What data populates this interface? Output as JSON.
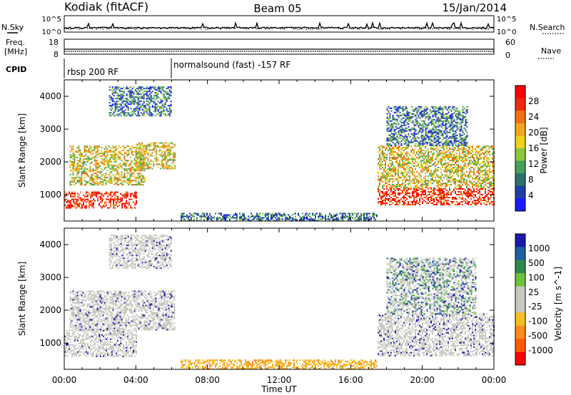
{
  "header": {
    "station": "Kodiak (fitACF)",
    "beam": "Beam 05",
    "date": "15/Jan/2014"
  },
  "aux_panels": {
    "nsky_label": "N.Sky",
    "nsearch_label": "N.Search",
    "nsky_ticks": [
      "10^5",
      "10^0"
    ],
    "nsearch_ticks": [
      "10^5",
      "10^0"
    ],
    "freq_label_line1": "Freq.",
    "freq_label_line2": "[MHz]",
    "freq_ticks": [
      "18",
      "8"
    ],
    "nave_label": "Nave",
    "nave_ticks": [
      "60",
      "0"
    ],
    "cpid_label": "CPID",
    "cpid_segments": [
      {
        "label": "rbsp 200 RF",
        "start_hour": 0,
        "end_hour": 6
      },
      {
        "label": "normalsound (fast) -157 RF",
        "start_hour": 6,
        "end_hour": 24
      }
    ]
  },
  "colors": {
    "power_scale": [
      "#1a1aff",
      "#1f3fa8",
      "#2e6f6f",
      "#48a05a",
      "#8cc63c",
      "#f0d21a",
      "#f5a51e",
      "#f27012",
      "#ee2a0e",
      "#ff0000"
    ],
    "velocity_scale": [
      "#ff0000",
      "#ff5a00",
      "#ff8c1a",
      "#f5c01e",
      "#c8c8c0",
      "#c8c8c0",
      "#6cc43c",
      "#2e8a4a",
      "#1f5fa0",
      "#1a1aa8"
    ],
    "ground_scatter": "#c8c8c0"
  },
  "chart_data": [
    {
      "type": "heatmap",
      "name": "power",
      "xlabel": "",
      "ylabel": "Slant Range [km]",
      "xlim": [
        0,
        24
      ],
      "ylim": [
        200,
        4500
      ],
      "yticks": [
        "1000",
        "2000",
        "3000",
        "4000"
      ],
      "colorbar_label": "Power [dB]",
      "colorbar_ticks": [
        "28",
        "24",
        "20",
        "16",
        "12",
        "8",
        "4"
      ],
      "echo_regions": [
        {
          "start_hour": 0.0,
          "end_hour": 4.0,
          "min_km": 600,
          "max_km": 1100,
          "level": "high"
        },
        {
          "start_hour": 0.3,
          "end_hour": 4.5,
          "min_km": 1300,
          "max_km": 2500,
          "level": "medium"
        },
        {
          "start_hour": 4.0,
          "end_hour": 6.2,
          "min_km": 1800,
          "max_km": 2600,
          "level": "medium"
        },
        {
          "start_hour": 2.5,
          "end_hour": 6.0,
          "min_km": 3400,
          "max_km": 4300,
          "level": "low"
        },
        {
          "start_hour": 17.5,
          "end_hour": 24.0,
          "min_km": 700,
          "max_km": 1200,
          "level": "high"
        },
        {
          "start_hour": 17.5,
          "end_hour": 24.0,
          "min_km": 1200,
          "max_km": 2500,
          "level": "medium"
        },
        {
          "start_hour": 18.0,
          "end_hour": 22.5,
          "min_km": 2500,
          "max_km": 3700,
          "level": "low"
        },
        {
          "start_hour": 6.5,
          "end_hour": 17.5,
          "min_km": 200,
          "max_km": 450,
          "level": "low"
        }
      ]
    },
    {
      "type": "heatmap",
      "name": "velocity",
      "xlabel": "Time UT",
      "ylabel": "Slant Range [km]",
      "xlim": [
        0,
        24
      ],
      "ylim": [
        200,
        4500
      ],
      "xticks": [
        "00:00",
        "04:00",
        "08:00",
        "12:00",
        "16:00",
        "20:00",
        "00:00"
      ],
      "yticks": [
        "1000",
        "2000",
        "3000",
        "4000"
      ],
      "colorbar_label": "Velocity [m s^-1]",
      "colorbar_ticks": [
        "1000",
        "500",
        "100",
        "25",
        "-25",
        "-100",
        "-500",
        "-1000"
      ],
      "echo_regions": [
        {
          "start_hour": 0.0,
          "end_hour": 4.0,
          "min_km": 600,
          "max_km": 1400,
          "level": "ground"
        },
        {
          "start_hour": 0.3,
          "end_hour": 6.2,
          "min_km": 1400,
          "max_km": 2600,
          "level": "ground"
        },
        {
          "start_hour": 2.5,
          "end_hour": 6.0,
          "min_km": 3300,
          "max_km": 4300,
          "level": "ground"
        },
        {
          "start_hour": 17.5,
          "end_hour": 24.0,
          "min_km": 600,
          "max_km": 1900,
          "level": "ground"
        },
        {
          "start_hour": 18.0,
          "end_hour": 23.0,
          "min_km": 1900,
          "max_km": 3600,
          "level": "mixed"
        },
        {
          "start_hour": 6.5,
          "end_hour": 17.5,
          "min_km": 200,
          "max_km": 500,
          "level": "slow"
        }
      ]
    }
  ]
}
